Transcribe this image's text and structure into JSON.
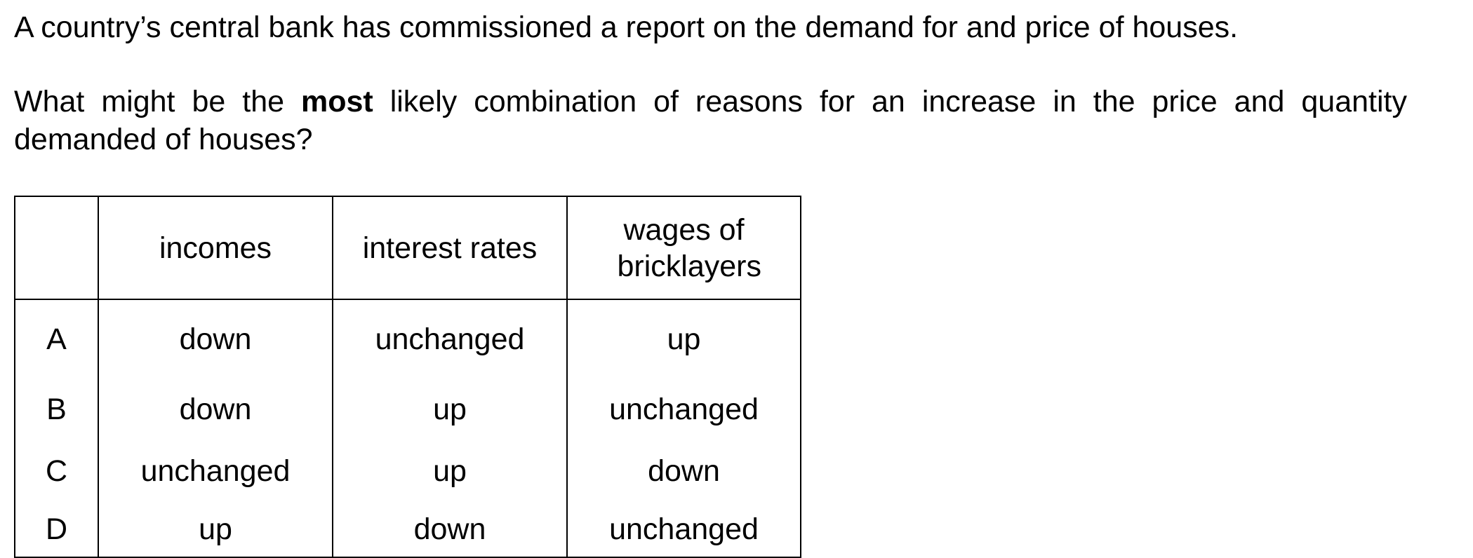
{
  "intro": "A country’s central bank has commissioned a report on the demand for and price of houses.",
  "question": {
    "before": "What might be the ",
    "emphasis": "most",
    "after": " likely combination of reasons for an increase in the price and quantity demanded of houses?"
  },
  "table": {
    "headers": [
      "",
      "incomes",
      "interest rates",
      "wages of bricklayers"
    ],
    "rows": [
      {
        "key": "A",
        "incomes": "down",
        "interest_rates": "unchanged",
        "wages": "up"
      },
      {
        "key": "B",
        "incomes": "down",
        "interest_rates": "up",
        "wages": "unchanged"
      },
      {
        "key": "C",
        "incomes": "unchanged",
        "interest_rates": "up",
        "wages": "down"
      },
      {
        "key": "D",
        "incomes": "up",
        "interest_rates": "down",
        "wages": "unchanged"
      }
    ]
  }
}
